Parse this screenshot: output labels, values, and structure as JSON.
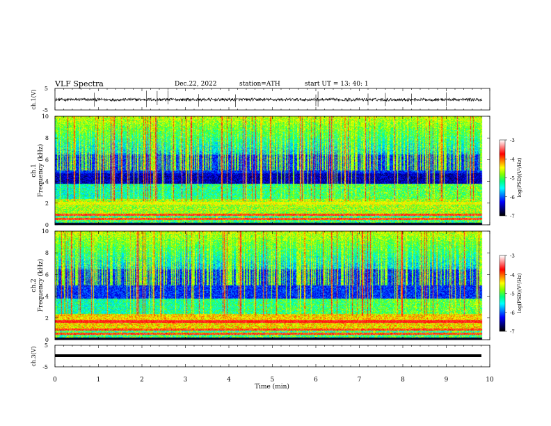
{
  "header": {
    "title": "VLF  Spectra",
    "date": "Dec.22, 2022",
    "station": "station=ATH",
    "start": "start  UT  =   13: 40: 1"
  },
  "colorbar": {
    "label": "log(PSD)(V²/Hz)",
    "ticks": [
      "-3",
      "-4",
      "-5",
      "-6",
      "-7"
    ],
    "colormap": [
      "#000000",
      "#000080",
      "#0000ff",
      "#0080ff",
      "#00ffff",
      "#00ff80",
      "#80ff00",
      "#ffff00",
      "#ff8000",
      "#ff0000",
      "#ff8080",
      "#ffffff"
    ]
  },
  "chart_data": [
    {
      "type": "line",
      "panel": "ch1-waveform",
      "ylabel": "ch.1(V)",
      "ylim": [
        -5,
        5
      ],
      "yticks": [
        "5",
        "-5"
      ],
      "xlim": [
        0,
        10
      ],
      "baseline": -0.2,
      "spike_times_min": [
        0.9,
        2.1,
        2.35,
        2.6,
        3.3,
        4.15,
        6.0,
        6.05,
        7.2,
        7.6,
        8.2,
        9.0
      ]
    },
    {
      "type": "heatmap",
      "panel": "ch1-spectrogram",
      "ylabel": "ch.1\nFrequency (kHz)",
      "xlim": [
        0,
        10
      ],
      "ylim": [
        0,
        10
      ],
      "yticks": [
        "10",
        "8",
        "6",
        "4",
        "2",
        "0"
      ],
      "clim": [
        -7,
        -3
      ],
      "duration_min": 9.83
    },
    {
      "type": "heatmap",
      "panel": "ch2-spectrogram",
      "ylabel": "ch.2\nFrequency (kHz)",
      "xlim": [
        0,
        10
      ],
      "ylim": [
        0,
        10
      ],
      "yticks": [
        "10",
        "8",
        "6",
        "4",
        "2",
        "0"
      ],
      "clim": [
        -7,
        -3
      ],
      "duration_min": 9.83
    },
    {
      "type": "line",
      "panel": "ch3-waveform",
      "ylabel": "ch.3(V)",
      "ylim": [
        -5,
        5
      ],
      "yticks": [
        "5",
        "-5"
      ],
      "xlim": [
        0,
        10
      ],
      "baseline": -0.5
    }
  ],
  "xaxis": {
    "label": "Time  (min)",
    "ticks": [
      "0",
      "1",
      "2",
      "3",
      "4",
      "5",
      "6",
      "7",
      "8",
      "9",
      "10"
    ]
  }
}
